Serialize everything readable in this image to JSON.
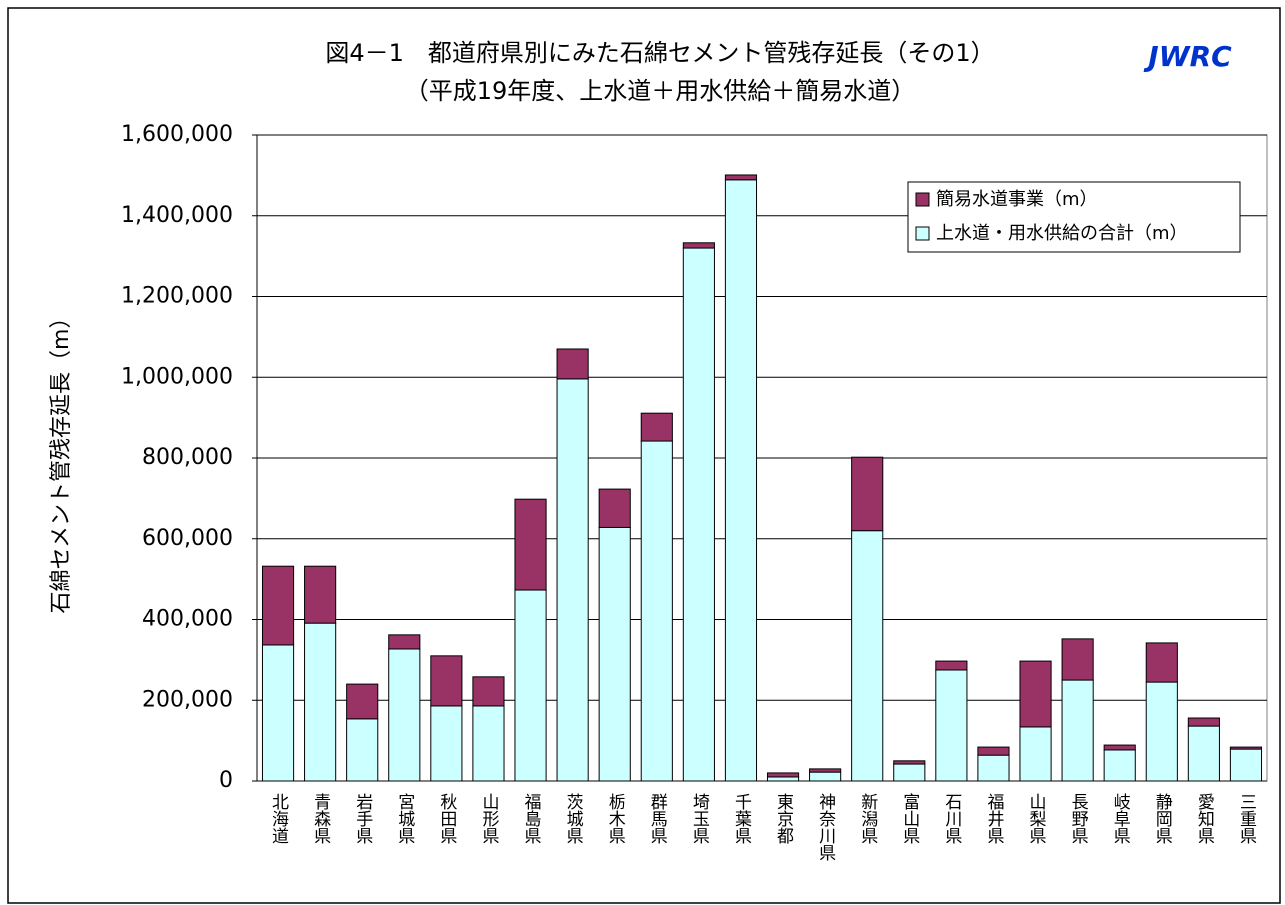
{
  "chart_data": {
    "type": "stacked-bar",
    "title": "図4－1　都道府県別にみた石綿セメント管残存延長（その1）",
    "subtitle": "（平成19年度、上水道＋用水供給＋簡易水道）",
    "annotation": "JWRC",
    "y_label": "石綿セメント管残存延長（m）",
    "categories": [
      "北海道",
      "青森県",
      "岩手県",
      "宮城県",
      "秋田県",
      "山形県",
      "福島県",
      "茨城県",
      "栃木県",
      "群馬県",
      "埼玉県",
      "千葉県",
      "東京都",
      "神奈川県",
      "新潟県",
      "富山県",
      "石川県",
      "福井県",
      "山梨県",
      "長野県",
      "岐阜県",
      "静岡県",
      "愛知県",
      "三重県"
    ],
    "series": [
      {
        "name": "上水道・用水供給の合計（m）",
        "color": "#ccffff",
        "values": [
          337000,
          391000,
          154000,
          327000,
          186000,
          186000,
          473000,
          996000,
          628000,
          842000,
          1320000,
          1489000,
          10000,
          22000,
          620000,
          42000,
          275000,
          64000,
          134000,
          250000,
          77000,
          245000,
          136000,
          79000
        ]
      },
      {
        "name": "簡易水道事業（m）",
        "color": "#993366",
        "values": [
          195000,
          141000,
          86000,
          35000,
          124000,
          72000,
          225000,
          74000,
          95000,
          69000,
          13000,
          12000,
          10000,
          8000,
          182000,
          8000,
          22000,
          20000,
          163000,
          102000,
          12000,
          97000,
          20000,
          5000
        ]
      }
    ],
    "ylim": [
      0,
      1600000
    ],
    "yticks": [
      0,
      {
        "value": 200000,
        "label": "200,000"
      },
      {
        "value": 400000,
        "label": "400,000"
      },
      {
        "value": 600000,
        "label": "600,000"
      },
      {
        "value": 800000,
        "label": "800,000"
      },
      {
        "value": 1000000,
        "label": "1,000,000"
      },
      {
        "value": 1200000,
        "label": "1,200,000"
      },
      {
        "value": 1400000,
        "label": "1,400,000"
      },
      {
        "value": 1600000,
        "label": "1,600,000"
      }
    ],
    "grid": true,
    "legend": "upper right"
  }
}
